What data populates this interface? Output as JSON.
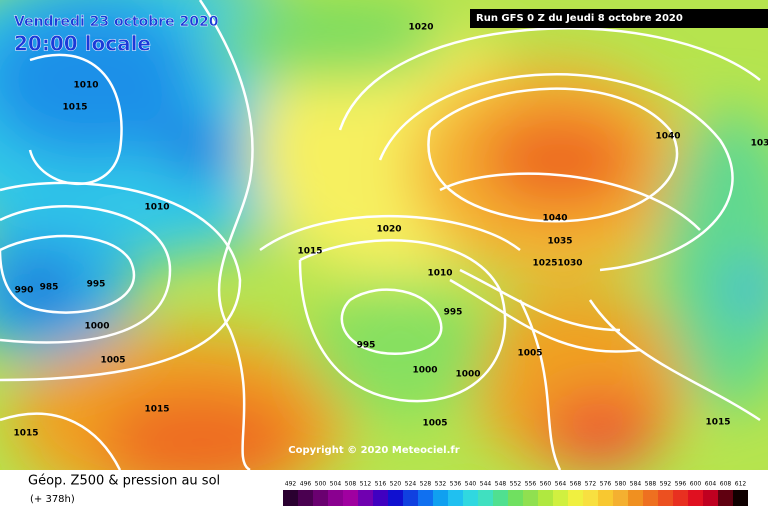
{
  "header": {
    "date": "Vendredi 23 octobre 2020",
    "time": "20:00 locale",
    "run": "Run GFS 0 Z du Jeudi 8 octobre 2020"
  },
  "isobar_labels": [
    "1020",
    "1010",
    "1015",
    "1010",
    "1015",
    "1020",
    "1010",
    "995",
    "990",
    "985",
    "1000",
    "1005",
    "995",
    "995",
    "1000",
    "1000",
    "1015",
    "1015",
    "1005",
    "1040",
    "1040",
    "1035",
    "1025",
    "1030",
    "1005",
    "1015",
    "103"
  ],
  "copyright": "Copyright © 2020 Meteociel.fr",
  "legend": {
    "title": "Géop. Z500 & pression au sol",
    "lead": "(+ 378h)",
    "scale": [
      492,
      496,
      500,
      504,
      508,
      512,
      516,
      520,
      524,
      528,
      532,
      536,
      540,
      544,
      548,
      552,
      556,
      560,
      564,
      568,
      572,
      576,
      580,
      584,
      588,
      592,
      596,
      600,
      604,
      608,
      612
    ]
  }
}
